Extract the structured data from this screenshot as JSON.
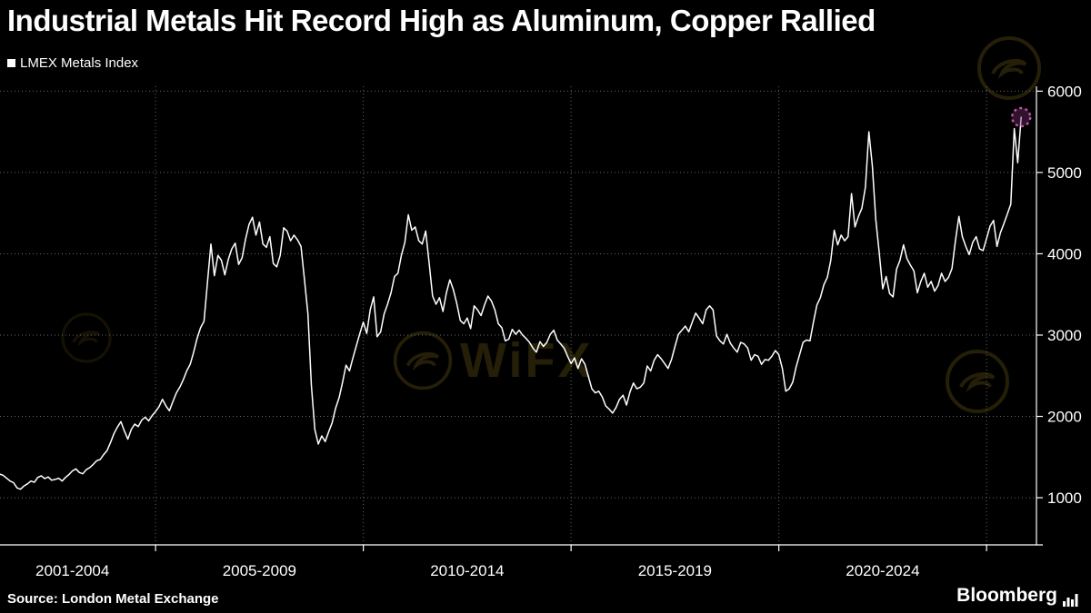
{
  "source": "Source: London Metal Exchange",
  "branding": {
    "name": "Bloomberg"
  },
  "watermark": {
    "text": "WiFX"
  },
  "colors": {
    "background": "#000000",
    "line": "#ffffff",
    "grid": "#666666",
    "axis": "#ffffff",
    "text": "#ffffff",
    "marker": "#b55aa8",
    "marker_fill": "rgba(128,44,116,0.4)",
    "watermark": "#8a751c"
  },
  "chart_data": {
    "type": "line",
    "title": "Industrial Metals Hit Record High as Aluminum, Copper Rallied",
    "legend": [
      "LMEX Metals Index"
    ],
    "legend_position": "top-left",
    "grid": "dotted",
    "xlabel": "",
    "ylabel": "",
    "y_ticks": [
      1000,
      2000,
      3000,
      4000,
      5000,
      6000
    ],
    "y_axis_range": [
      420,
      6060
    ],
    "x_tick_years": [
      2005,
      2010,
      2015,
      2020,
      2025
    ],
    "x_labels": [
      {
        "label": "2001-2004",
        "center": 2003.0
      },
      {
        "label": "2005-2009",
        "center": 2007.5
      },
      {
        "label": "2010-2014",
        "center": 2012.5
      },
      {
        "label": "2015-2019",
        "center": 2017.5
      },
      {
        "label": "2020-2024",
        "center": 2022.5
      }
    ],
    "x_range": [
      2001.3,
      2026.2
    ],
    "end_marker": {
      "shape": "dashed-circle",
      "value": 5680
    },
    "series": [
      {
        "name": "LMEX Metals Index",
        "start_year": 2001.0,
        "interval_months": 1,
        "values": [
          1310,
          1285,
          1260,
          1290,
          1275,
          1240,
          1205,
          1185,
          1120,
          1105,
          1145,
          1170,
          1205,
          1190,
          1250,
          1270,
          1235,
          1255,
          1215,
          1225,
          1240,
          1205,
          1250,
          1285,
          1330,
          1355,
          1310,
          1295,
          1345,
          1370,
          1410,
          1455,
          1470,
          1530,
          1580,
          1680,
          1790,
          1870,
          1935,
          1820,
          1720,
          1840,
          1905,
          1875,
          1955,
          1990,
          1945,
          2010,
          2060,
          2120,
          2210,
          2130,
          2070,
          2180,
          2290,
          2360,
          2450,
          2560,
          2640,
          2790,
          2960,
          3090,
          3170,
          3650,
          4120,
          3730,
          3980,
          3920,
          3740,
          3930,
          4060,
          4130,
          3870,
          3950,
          4180,
          4360,
          4450,
          4230,
          4390,
          4120,
          4080,
          4210,
          3880,
          3840,
          3980,
          4320,
          4280,
          4160,
          4230,
          4170,
          4090,
          3680,
          3260,
          2380,
          1840,
          1660,
          1760,
          1690,
          1810,
          1920,
          2100,
          2230,
          2420,
          2630,
          2560,
          2720,
          2870,
          3020,
          3160,
          3020,
          3310,
          3470,
          2980,
          3040,
          3260,
          3380,
          3520,
          3720,
          3760,
          3980,
          4140,
          4480,
          4290,
          4330,
          4160,
          4120,
          4280,
          3890,
          3480,
          3380,
          3460,
          3290,
          3520,
          3680,
          3560,
          3390,
          3180,
          3140,
          3210,
          3080,
          3360,
          3310,
          3240,
          3370,
          3480,
          3420,
          3310,
          3140,
          3090,
          2930,
          2950,
          3070,
          3010,
          3060,
          3000,
          2960,
          2910,
          2840,
          2790,
          2920,
          2860,
          2910,
          3010,
          3060,
          2940,
          2890,
          2840,
          2740,
          2650,
          2720,
          2590,
          2710,
          2640,
          2490,
          2340,
          2290,
          2310,
          2240,
          2130,
          2090,
          2040,
          2110,
          2210,
          2260,
          2140,
          2300,
          2410,
          2340,
          2360,
          2410,
          2620,
          2560,
          2690,
          2760,
          2710,
          2650,
          2590,
          2700,
          2860,
          3010,
          3060,
          3110,
          3040,
          3160,
          3270,
          3210,
          3140,
          3310,
          3360,
          3310,
          2990,
          2930,
          2890,
          3010,
          2900,
          2840,
          2790,
          2910,
          2890,
          2840,
          2690,
          2760,
          2740,
          2640,
          2700,
          2690,
          2740,
          2810,
          2760,
          2590,
          2310,
          2340,
          2420,
          2610,
          2760,
          2910,
          2940,
          2930,
          3160,
          3370,
          3460,
          3620,
          3710,
          3920,
          4290,
          4110,
          4230,
          4160,
          4210,
          4740,
          4330,
          4460,
          4560,
          4820,
          5500,
          5080,
          4420,
          4010,
          3570,
          3720,
          3510,
          3470,
          3810,
          3920,
          4110,
          3940,
          3860,
          3790,
          3520,
          3660,
          3760,
          3590,
          3660,
          3540,
          3610,
          3760,
          3660,
          3710,
          3820,
          4160,
          4460,
          4210,
          4090,
          3990,
          4140,
          4210,
          4060,
          4040,
          4190,
          4340,
          4410,
          4090,
          4260,
          4370,
          4490,
          4610,
          5540,
          5120,
          5680
        ]
      }
    ]
  }
}
